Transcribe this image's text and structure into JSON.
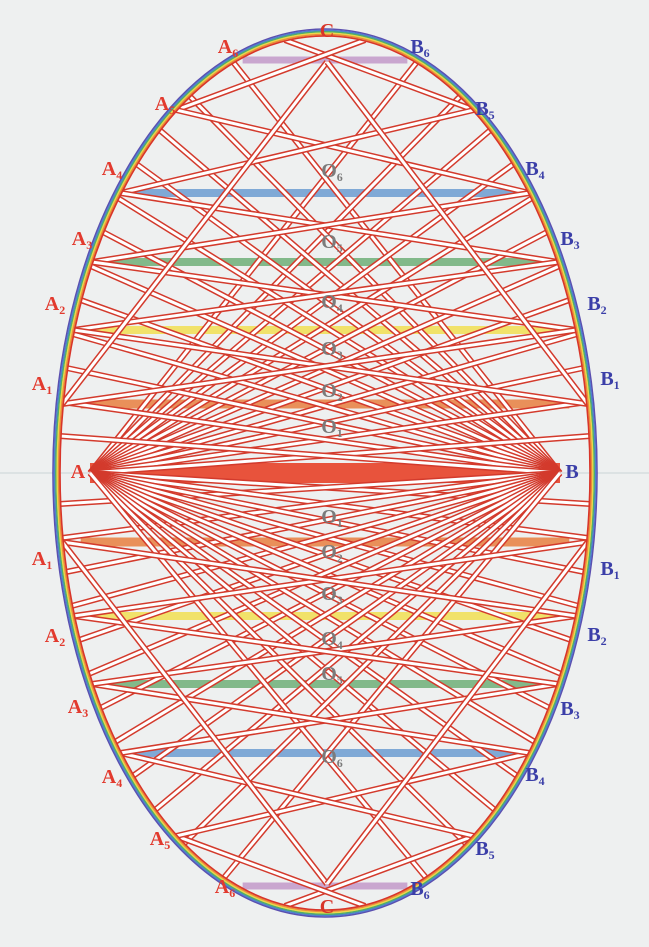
{
  "c_labels": [
    {
      "letter": "C"
    },
    {
      "letter": "C"
    }
  ],
  "a_labels_top": [
    {
      "letter": "A"
    },
    {
      "letter": "A",
      "sub": "1"
    },
    {
      "letter": "A",
      "sub": "2"
    },
    {
      "letter": "A",
      "sub": "3"
    },
    {
      "letter": "A",
      "sub": "4"
    },
    {
      "letter": "A",
      "sub": "5"
    },
    {
      "letter": "A",
      "sub": "6"
    }
  ],
  "b_labels_top": [
    {
      "letter": "B"
    },
    {
      "letter": "B",
      "sub": "1"
    },
    {
      "letter": "B",
      "sub": "2"
    },
    {
      "letter": "B",
      "sub": "3"
    },
    {
      "letter": "B",
      "sub": "4"
    },
    {
      "letter": "B",
      "sub": "5"
    },
    {
      "letter": "B",
      "sub": "6"
    }
  ],
  "a_labels_bottom": [
    {
      "letter": "A",
      "sub": "1"
    },
    {
      "letter": "A",
      "sub": "2"
    },
    {
      "letter": "A",
      "sub": "3"
    },
    {
      "letter": "A",
      "sub": "4"
    },
    {
      "letter": "A",
      "sub": "5"
    },
    {
      "letter": "A",
      "sub": "6"
    }
  ],
  "b_labels_bottom": [
    {
      "letter": "B",
      "sub": "1"
    },
    {
      "letter": "B",
      "sub": "2"
    },
    {
      "letter": "B",
      "sub": "3"
    },
    {
      "letter": "B",
      "sub": "4"
    },
    {
      "letter": "B",
      "sub": "5"
    },
    {
      "letter": "B",
      "sub": "6"
    }
  ],
  "o_labels_top": [
    {
      "letter": "O",
      "sub": "1"
    },
    {
      "letter": "O",
      "sub": "2"
    },
    {
      "letter": "O",
      "sub": "3"
    },
    {
      "letter": "O",
      "sub": "4"
    },
    {
      "letter": "O",
      "sub": "5"
    },
    {
      "letter": "O",
      "sub": "6"
    }
  ],
  "o_labels_bottom": [
    {
      "letter": "O",
      "sub": "1"
    },
    {
      "letter": "O",
      "sub": "2"
    },
    {
      "letter": "O",
      "sub": "3"
    },
    {
      "letter": "O",
      "sub": "4"
    },
    {
      "letter": "O",
      "sub": "5"
    },
    {
      "letter": "O",
      "sub": "6"
    }
  ]
}
